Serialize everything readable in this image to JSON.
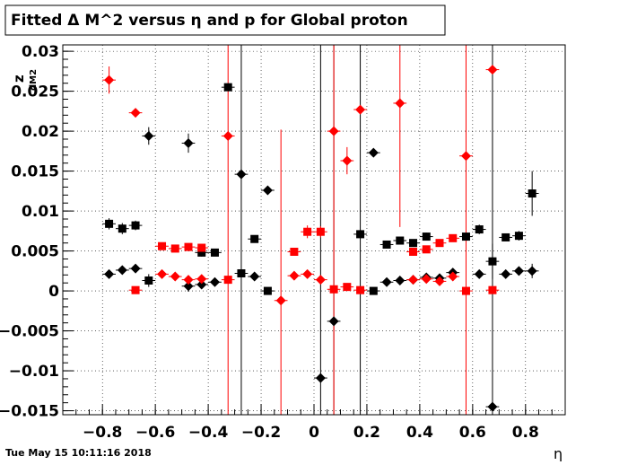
{
  "chart_data": {
    "type": "scatter",
    "title": "Fitted Δ M^2 versus η and p for Global proton",
    "xlabel": "η",
    "ylabel_main": "z",
    "ylabel_sub": "dM2",
    "xlim": [
      -0.95,
      0.95
    ],
    "ylim": [
      -0.0155,
      0.0308
    ],
    "grid": true,
    "x_ticks": [
      {
        "v": -0.8,
        "label": "−0.8"
      },
      {
        "v": -0.6,
        "label": "−0.6"
      },
      {
        "v": -0.4,
        "label": "−0.4"
      },
      {
        "v": -0.2,
        "label": "−0.2"
      },
      {
        "v": 0,
        "label": "0"
      },
      {
        "v": 0.2,
        "label": "0.2"
      },
      {
        "v": 0.4,
        "label": "0.4"
      },
      {
        "v": 0.6,
        "label": "0.6"
      },
      {
        "v": 0.8,
        "label": "0.8"
      }
    ],
    "y_ticks": [
      {
        "v": 0.03,
        "label": "0.03"
      },
      {
        "v": 0.025,
        "label": "0.025"
      },
      {
        "v": 0.02,
        "label": "0.02"
      },
      {
        "v": 0.015,
        "label": "0.015"
      },
      {
        "v": 0.01,
        "label": "0.01"
      },
      {
        "v": 0.005,
        "label": "0.005"
      },
      {
        "v": 0,
        "label": "0"
      },
      {
        "v": -0.005,
        "label": "−0.005"
      },
      {
        "v": -0.01,
        "label": "−0.01"
      },
      {
        "v": -0.015,
        "label": "−0.015"
      }
    ],
    "series": [
      {
        "color": "#000000",
        "marker": "square",
        "points": [
          {
            "x": -0.775,
            "y": 0.0084,
            "e": 0.0007
          },
          {
            "x": -0.725,
            "y": 0.0078,
            "e": 0.0007
          },
          {
            "x": -0.675,
            "y": 0.0082,
            "e": 0.0006
          },
          {
            "x": -0.625,
            "y": 0.0013,
            "e": 0.0008
          },
          {
            "x": -0.425,
            "y": 0.0048,
            "e": 0.0005
          },
          {
            "x": -0.375,
            "y": 0.0048,
            "e": 0.0004
          },
          {
            "x": -0.325,
            "y": 0.0255,
            "e": 0.0004
          },
          {
            "x": -0.275,
            "y": 0.0022,
            "e": 0.0003
          },
          {
            "x": -0.225,
            "y": 0.0065,
            "e": 0.0004
          },
          {
            "x": -0.175,
            "y": 0.0,
            "e": 0.0003
          },
          {
            "x": 0.175,
            "y": 0.0071,
            "e": 0.0005
          },
          {
            "x": 0.225,
            "y": 0.0,
            "e": 0.0003
          },
          {
            "x": 0.275,
            "y": 0.0058,
            "e": 0.0004
          },
          {
            "x": 0.325,
            "y": 0.0063,
            "e": 0.0004
          },
          {
            "x": 0.375,
            "y": 0.006,
            "e": 0.0004
          },
          {
            "x": 0.425,
            "y": 0.0068,
            "e": 0.0005
          },
          {
            "x": 0.575,
            "y": 0.0068,
            "e": 0.0004
          },
          {
            "x": 0.625,
            "y": 0.0077,
            "e": 0.0006
          },
          {
            "x": 0.675,
            "y": 0.0037,
            "e": 0.0022
          },
          {
            "x": 0.725,
            "y": 0.0067,
            "e": 0.0004
          },
          {
            "x": 0.775,
            "y": 0.0069,
            "e": 0.0006
          },
          {
            "x": 0.825,
            "y": 0.0122,
            "e": 0.0028
          }
        ]
      },
      {
        "color": "#000000",
        "marker": "diamond",
        "points": [
          {
            "x": -0.775,
            "y": 0.0021,
            "e": 0.0004
          },
          {
            "x": -0.725,
            "y": 0.0026,
            "e": 0.0005
          },
          {
            "x": -0.675,
            "y": 0.0028,
            "e": 0.0004
          },
          {
            "x": -0.625,
            "y": 0.0194,
            "e": 0.0011
          },
          {
            "x": -0.475,
            "y": 0.0185,
            "e": 0.0012
          },
          {
            "x": -0.475,
            "y": 0.0006,
            "e": 0.0007
          },
          {
            "x": -0.425,
            "y": 0.0008,
            "e": 0.0005
          },
          {
            "x": -0.375,
            "y": 0.0011,
            "e": 0.0003
          },
          {
            "x": -0.275,
            "y": 0.0146,
            "e": 0.0003
          },
          {
            "x": -0.225,
            "y": 0.0018,
            "e": 0.0003
          },
          {
            "x": -0.175,
            "y": 0.0126,
            "e": 0.0002
          },
          {
            "x": 0.025,
            "y": -0.0109,
            "e": 0.0
          },
          {
            "x": 0.075,
            "y": -0.0038,
            "e": 0.0
          },
          {
            "x": 0.225,
            "y": 0.0173,
            "e": 0.0003
          },
          {
            "x": 0.275,
            "y": 0.0011,
            "e": 0.0003
          },
          {
            "x": 0.325,
            "y": 0.0013,
            "e": 0.0003
          },
          {
            "x": 0.375,
            "y": 0.0014,
            "e": 0.0003
          },
          {
            "x": 0.425,
            "y": 0.0017,
            "e": 0.0003
          },
          {
            "x": 0.475,
            "y": 0.0016,
            "e": 0.0003
          },
          {
            "x": 0.525,
            "y": 0.0023,
            "e": 0.0005
          },
          {
            "x": 0.625,
            "y": 0.0021,
            "e": 0.0005
          },
          {
            "x": 0.675,
            "y": -0.0145,
            "e": 0.0
          },
          {
            "x": 0.725,
            "y": 0.0021,
            "e": 0.0004
          },
          {
            "x": 0.775,
            "y": 0.0025,
            "e": 0.0004
          },
          {
            "x": 0.825,
            "y": 0.0025,
            "e": 0.0009
          }
        ]
      },
      {
        "color": "#ff0000",
        "marker": "square",
        "points": [
          {
            "x": -0.675,
            "y": 0.0001,
            "e": 0.0004
          },
          {
            "x": -0.575,
            "y": 0.0056,
            "e": 0.0004
          },
          {
            "x": -0.525,
            "y": 0.0053,
            "e": 0.0004
          },
          {
            "x": -0.475,
            "y": 0.0055,
            "e": 0.0004
          },
          {
            "x": -0.425,
            "y": 0.0054,
            "e": 0.0004
          },
          {
            "x": -0.325,
            "y": 0.0014,
            "e": 0.0004
          },
          {
            "x": -0.075,
            "y": 0.0049,
            "e": 0.0004
          },
          {
            "x": -0.025,
            "y": 0.0074,
            "e": 0.0008
          },
          {
            "x": 0.025,
            "y": 0.0074,
            "e": 0.0007
          },
          {
            "x": 0.075,
            "y": 0.0002,
            "e": 0.0004
          },
          {
            "x": 0.125,
            "y": 0.0005,
            "e": 0.0004
          },
          {
            "x": 0.175,
            "y": 0.0001,
            "e": 0.0004
          },
          {
            "x": 0.375,
            "y": 0.0049,
            "e": 0.0005
          },
          {
            "x": 0.425,
            "y": 0.0052,
            "e": 0.0004
          },
          {
            "x": 0.475,
            "y": 0.006,
            "e": 0.0004
          },
          {
            "x": 0.525,
            "y": 0.0066,
            "e": 0.0004
          },
          {
            "x": 0.575,
            "y": 0.0,
            "e": 0.0003
          },
          {
            "x": 0.675,
            "y": 0.0001,
            "e": 0.0003
          }
        ]
      },
      {
        "color": "#ff0000",
        "marker": "diamond",
        "points": [
          {
            "x": -0.775,
            "y": 0.0264,
            "e": 0.0017
          },
          {
            "x": -0.675,
            "y": 0.0223,
            "e": 0.0003
          },
          {
            "x": -0.575,
            "y": 0.0021,
            "e": 0.0004
          },
          {
            "x": -0.525,
            "y": 0.0018,
            "e": 0.0004
          },
          {
            "x": -0.475,
            "y": 0.0014,
            "e": 0.0004
          },
          {
            "x": -0.425,
            "y": 0.0015,
            "e": 0.0004
          },
          {
            "x": -0.325,
            "y": 0.0194,
            "e": 0.0
          },
          {
            "x": -0.125,
            "y": -0.0012,
            "e": 0.0
          },
          {
            "x": -0.075,
            "y": 0.0019,
            "e": 0.0004
          },
          {
            "x": -0.025,
            "y": 0.0021,
            "e": 0.0004
          },
          {
            "x": 0.025,
            "y": 0.0014,
            "e": 0.0004
          },
          {
            "x": 0.075,
            "y": 0.02,
            "e": 0.0
          },
          {
            "x": 0.125,
            "y": 0.0163,
            "e": 0.0017
          },
          {
            "x": 0.175,
            "y": 0.0227,
            "e": 0.0004
          },
          {
            "x": 0.325,
            "y": 0.0235,
            "e": 0.0
          },
          {
            "x": 0.375,
            "y": 0.0014,
            "e": 0.0004
          },
          {
            "x": 0.425,
            "y": 0.0015,
            "e": 0.0004
          },
          {
            "x": 0.475,
            "y": 0.0012,
            "e": 0.0004
          },
          {
            "x": 0.525,
            "y": 0.0018,
            "e": 0.0004
          },
          {
            "x": 0.575,
            "y": 0.0169,
            "e": 0.0
          },
          {
            "x": 0.675,
            "y": 0.0277,
            "e": 0.0003
          }
        ]
      }
    ],
    "long_error_bars": [
      {
        "color": "#ff0000",
        "x": -0.325,
        "y1": 0.0308,
        "y2": -0.0155
      },
      {
        "color": "#000000",
        "x": -0.275,
        "y1": 0.0308,
        "y2": -0.0155
      },
      {
        "color": "#ff0000",
        "x": -0.125,
        "y1": 0.0202,
        "y2": -0.0155
      },
      {
        "color": "#000000",
        "x": 0.025,
        "y1": 0.0308,
        "y2": -0.0155
      },
      {
        "color": "#000000",
        "x": 0.075,
        "y1": 0.0308,
        "y2": -0.0155
      },
      {
        "color": "#ff0000",
        "x": 0.075,
        "y1": 0.0308,
        "y2": -0.0155
      },
      {
        "color": "#000000",
        "x": 0.175,
        "y1": 0.0308,
        "y2": -0.0155
      },
      {
        "color": "#ff0000",
        "x": 0.325,
        "y1": 0.0308,
        "y2": 0.008
      },
      {
        "color": "#ff0000",
        "x": 0.575,
        "y1": 0.0308,
        "y2": -0.0155
      },
      {
        "color": "#000000",
        "x": 0.675,
        "y1": 0.0308,
        "y2": -0.0155
      }
    ]
  },
  "footer": {
    "timestamp": "Tue May 15 10:11:16 2018"
  }
}
